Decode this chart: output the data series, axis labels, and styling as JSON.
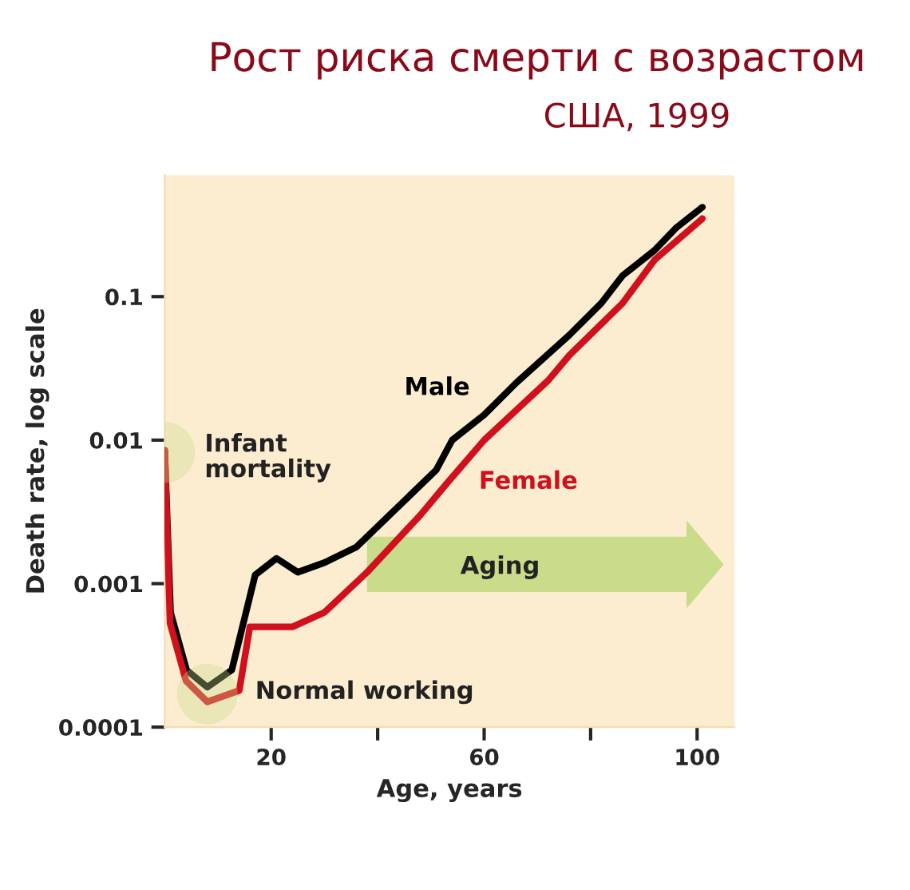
{
  "chart_data": {
    "type": "line",
    "title": "Рост риска смерти с возрастом",
    "subtitle": "США, 1999",
    "xlabel": "Age, years",
    "ylabel": "Death rate, log scale",
    "log": true,
    "grid": false,
    "xlim": [
      0,
      107
    ],
    "ylim": [
      0.0001,
      0.7
    ],
    "xticks": [
      20,
      {
        "value": 40,
        "label": null
      },
      60,
      {
        "value": 80,
        "label": null
      },
      100
    ],
    "yticks": [
      0.0001,
      0.001,
      0.01,
      0.1
    ],
    "annotations": [
      {
        "text": "Infant\nmortality",
        "x": 0,
        "y": 0.0082
      },
      {
        "text": "Normal working",
        "x": 8,
        "y": 0.00017
      },
      "Aging"
    ],
    "series": [
      {
        "name": "Male",
        "color": "#000000",
        "x": [
          0,
          1.1,
          4.1,
          8,
          12.6,
          17,
          21,
          25,
          30,
          36,
          43,
          51,
          54,
          60,
          66,
          76,
          82,
          86,
          92,
          96,
          101
        ],
        "values": [
          0.0085,
          0.00063,
          0.00025,
          0.00019,
          0.00025,
          0.00115,
          0.0015,
          0.0012,
          0.0014,
          0.0018,
          0.0032,
          0.0062,
          0.01,
          0.015,
          0.025,
          0.054,
          0.09,
          0.14,
          0.21,
          0.3,
          0.42
        ]
      },
      {
        "name": "Female",
        "color": "#d0101c",
        "x": [
          0,
          1,
          4,
          8,
          14,
          16,
          24,
          30,
          38,
          48,
          53,
          60,
          72,
          76,
          86,
          92,
          101
        ],
        "values": [
          0.0085,
          0.00053,
          0.00021,
          0.00015,
          0.00018,
          0.0005,
          0.0005,
          0.00063,
          0.0012,
          0.003,
          0.005,
          0.01,
          0.026,
          0.039,
          0.09,
          0.18,
          0.35
        ]
      }
    ]
  }
}
